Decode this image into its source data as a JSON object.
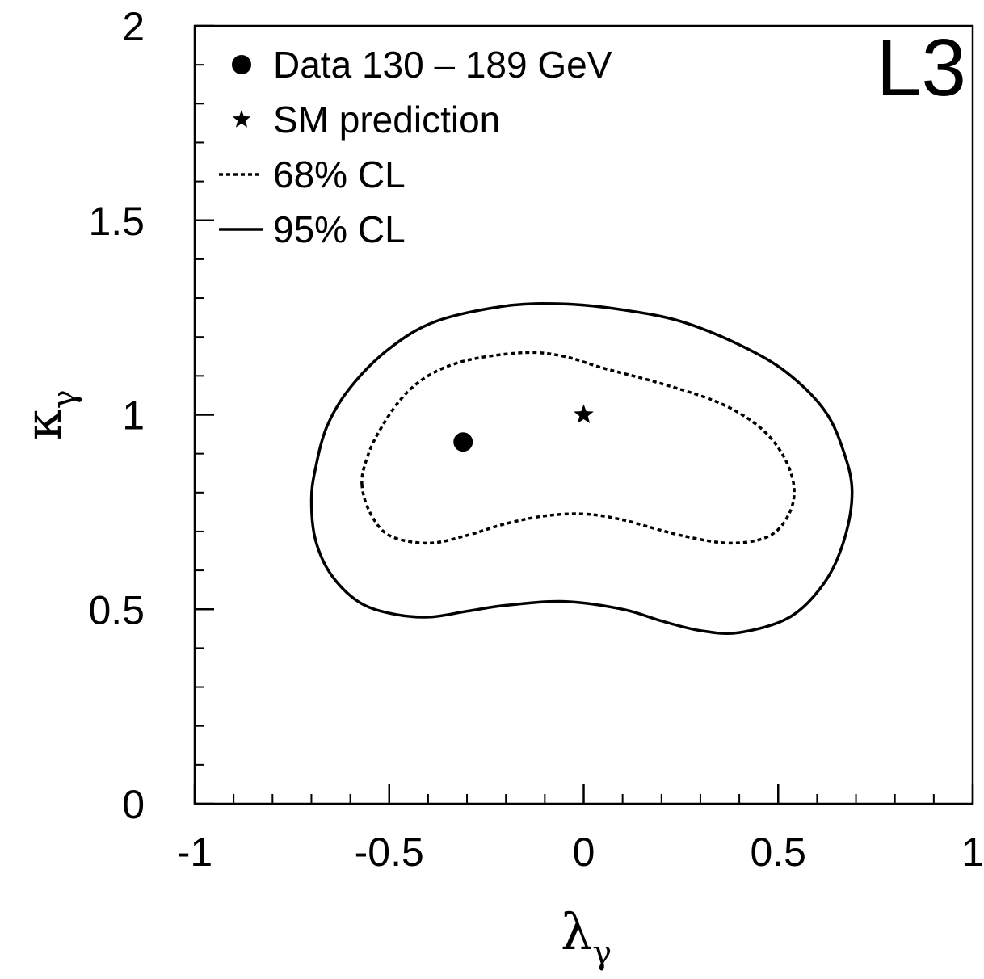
{
  "chart_data": {
    "type": "scatter",
    "xlabel": {
      "symbol": "λ",
      "subscript": "γ"
    },
    "ylabel": {
      "symbol": "κ",
      "subscript": "γ"
    },
    "xlim": [
      -1,
      1
    ],
    "ylim": [
      0,
      2
    ],
    "x_ticks": [
      "-1",
      "-0.5",
      "0",
      "0.5",
      "1"
    ],
    "y_ticks": [
      "0",
      "0.5",
      "1",
      "1.5",
      "2"
    ],
    "x_tick_values": [
      -1,
      -0.5,
      0,
      0.5,
      1
    ],
    "y_tick_values": [
      0,
      0.5,
      1,
      1.5,
      2
    ],
    "x_minor_step": 0.1,
    "y_minor_step": 0.1,
    "grid": false,
    "experiment_label": "L3",
    "legend_position": "top-left",
    "legend": [
      {
        "label": "Data 130 – 189 GeV",
        "marker": "filled-circle"
      },
      {
        "label": "SM prediction",
        "marker": "star"
      },
      {
        "label": "68% CL",
        "marker": "dotted-line"
      },
      {
        "label": "95% CL",
        "marker": "solid-line"
      }
    ],
    "points": [
      {
        "name": "Data 130 – 189 GeV",
        "x": -0.31,
        "y": 0.93,
        "marker": "filled-circle"
      },
      {
        "name": "SM prediction",
        "x": 0.0,
        "y": 1.0,
        "marker": "star"
      }
    ],
    "contours": [
      {
        "name": "68% CL",
        "style": "dotted",
        "points": [
          [
            -0.57,
            0.82
          ],
          [
            -0.56,
            0.88
          ],
          [
            -0.53,
            0.95
          ],
          [
            -0.47,
            1.04
          ],
          [
            -0.4,
            1.1
          ],
          [
            -0.3,
            1.14
          ],
          [
            -0.15,
            1.16
          ],
          [
            -0.05,
            1.15
          ],
          [
            0.05,
            1.12
          ],
          [
            0.2,
            1.08
          ],
          [
            0.35,
            1.03
          ],
          [
            0.45,
            0.97
          ],
          [
            0.51,
            0.9
          ],
          [
            0.54,
            0.82
          ],
          [
            0.53,
            0.75
          ],
          [
            0.48,
            0.69
          ],
          [
            0.38,
            0.67
          ],
          [
            0.25,
            0.69
          ],
          [
            0.1,
            0.73
          ],
          [
            0.0,
            0.745
          ],
          [
            -0.1,
            0.74
          ],
          [
            -0.2,
            0.72
          ],
          [
            -0.3,
            0.69
          ],
          [
            -0.4,
            0.67
          ],
          [
            -0.5,
            0.69
          ],
          [
            -0.55,
            0.75
          ]
        ]
      },
      {
        "name": "95% CL",
        "style": "solid",
        "points": [
          [
            -0.7,
            0.78
          ],
          [
            -0.69,
            0.86
          ],
          [
            -0.66,
            0.97
          ],
          [
            -0.6,
            1.07
          ],
          [
            -0.5,
            1.17
          ],
          [
            -0.38,
            1.24
          ],
          [
            -0.2,
            1.28
          ],
          [
            -0.05,
            1.285
          ],
          [
            0.1,
            1.27
          ],
          [
            0.25,
            1.24
          ],
          [
            0.4,
            1.18
          ],
          [
            0.52,
            1.11
          ],
          [
            0.62,
            1.01
          ],
          [
            0.67,
            0.9
          ],
          [
            0.69,
            0.8
          ],
          [
            0.67,
            0.68
          ],
          [
            0.62,
            0.57
          ],
          [
            0.53,
            0.48
          ],
          [
            0.4,
            0.44
          ],
          [
            0.3,
            0.445
          ],
          [
            0.2,
            0.47
          ],
          [
            0.1,
            0.5
          ],
          [
            -0.05,
            0.52
          ],
          [
            -0.2,
            0.51
          ],
          [
            -0.3,
            0.495
          ],
          [
            -0.4,
            0.48
          ],
          [
            -0.5,
            0.49
          ],
          [
            -0.58,
            0.52
          ],
          [
            -0.65,
            0.59
          ],
          [
            -0.69,
            0.68
          ]
        ]
      }
    ]
  }
}
